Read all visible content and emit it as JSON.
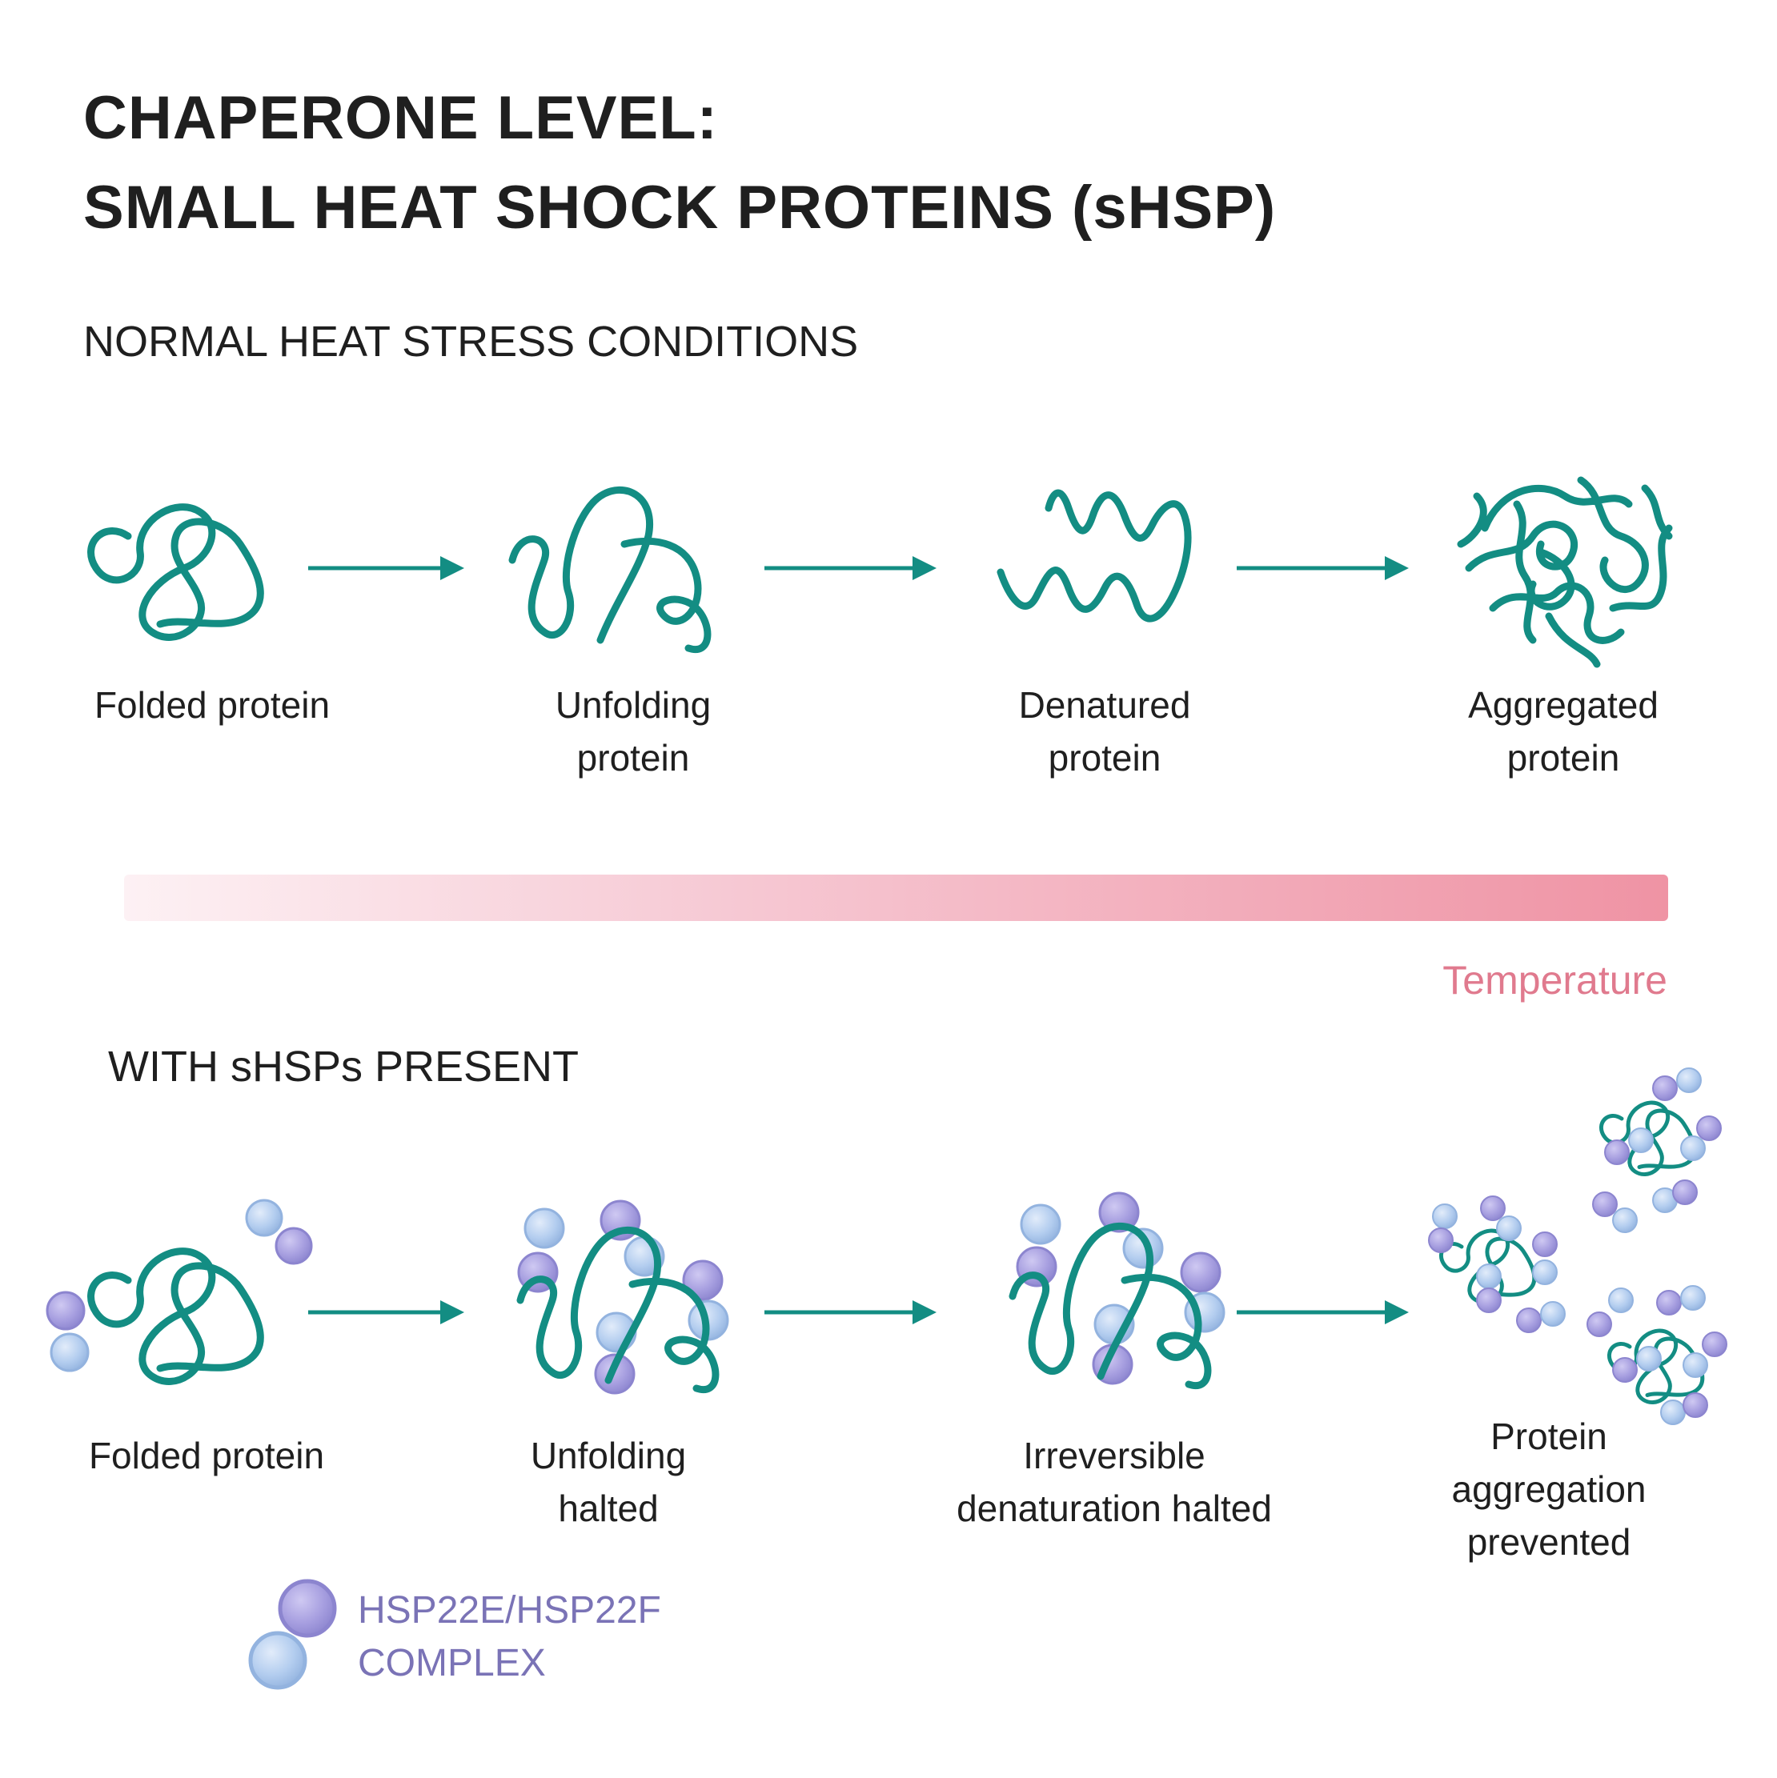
{
  "title_line1": "CHAPERONE LEVEL:",
  "title_line2": "SMALL HEAT SHOCK PROTEINS (sHSP)",
  "top_row": {
    "heading": "NORMAL HEAT STRESS CONDITIONS",
    "stages": [
      {
        "line1": "Folded protein",
        "line2": ""
      },
      {
        "line1": "Unfolding",
        "line2": "protein"
      },
      {
        "line1": "Denatured",
        "line2": "protein"
      },
      {
        "line1": "Aggregated",
        "line2": "protein"
      }
    ]
  },
  "temperature": {
    "label": "Temperature",
    "gradient_start": "#fdf1f4",
    "gradient_end": "#ef93a4"
  },
  "bottom_row": {
    "heading": "WITH sHSPs PRESENT",
    "stages": [
      {
        "line1": "Folded protein",
        "line2": "",
        "line3": ""
      },
      {
        "line1": "Unfolding",
        "line2": "halted",
        "line3": ""
      },
      {
        "line1": "Irreversible",
        "line2": "denaturation halted",
        "line3": ""
      },
      {
        "line1": "Protein",
        "line2": "aggregation",
        "line3": "prevented"
      }
    ]
  },
  "legend": {
    "line1": "HSP22E/HSP22F",
    "line2": "COMPLEX"
  },
  "colors": {
    "protein": "#138d83",
    "hsp22e": "#a79fe0",
    "hsp22f": "#b3cdef",
    "legend_text": "#7a73b6",
    "temperature_text": "#e07a8e"
  }
}
